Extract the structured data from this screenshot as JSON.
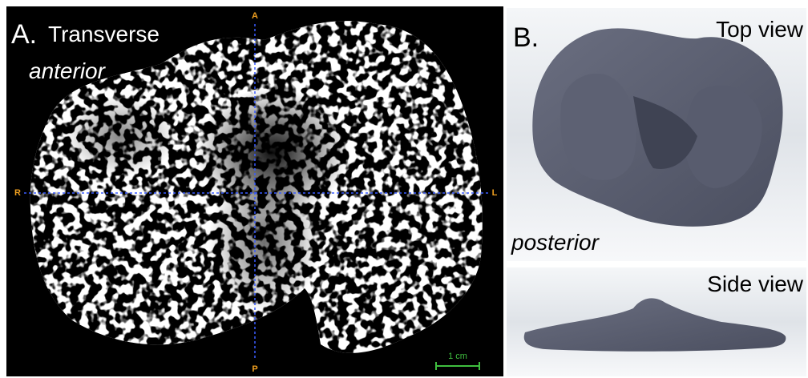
{
  "panel_a": {
    "label": "A.",
    "title": "Transverse",
    "direction": "anterior",
    "orientation": {
      "top": "A",
      "bottom": "P",
      "left": "R",
      "right": "L"
    },
    "scale_bar": "1 cm"
  },
  "panel_b": {
    "label": "B.",
    "top_view": {
      "title": "Top view",
      "direction": "posterior"
    },
    "side_view": {
      "title": "Side view"
    }
  }
}
